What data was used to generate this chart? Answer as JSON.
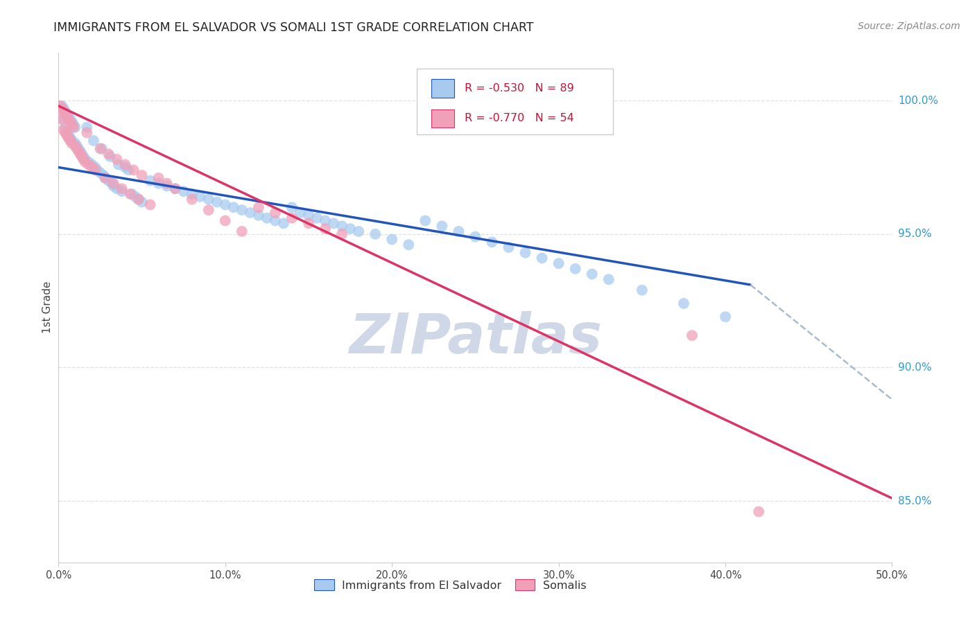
{
  "title": "IMMIGRANTS FROM EL SALVADOR VS SOMALI 1ST GRADE CORRELATION CHART",
  "source": "Source: ZipAtlas.com",
  "ylabel": "1st Grade",
  "ytick_labels": [
    "100.0%",
    "95.0%",
    "90.0%",
    "85.0%"
  ],
  "ytick_values": [
    1.0,
    0.95,
    0.9,
    0.85
  ],
  "xmin": 0.0,
  "xmax": 0.5,
  "ymin": 0.827,
  "ymax": 1.018,
  "legend_blue_r": "-0.530",
  "legend_blue_n": "89",
  "legend_pink_r": "-0.770",
  "legend_pink_n": "54",
  "blue_color": "#A8CAEE",
  "pink_color": "#F0A0B8",
  "blue_line_color": "#2255BB",
  "pink_line_color": "#DD3366",
  "dashed_line_color": "#AABBCC",
  "title_color": "#222222",
  "source_color": "#888888",
  "axis_label_color": "#444444",
  "tick_color": "#3399CC",
  "grid_color": "#DDDDDD",
  "watermark_text": "ZIPatlas",
  "watermark_color": "#D0D8E8",
  "blue_line_x": [
    0.0,
    0.415
  ],
  "blue_line_y": [
    0.975,
    0.931
  ],
  "pink_line_x": [
    0.0,
    0.5
  ],
  "pink_line_y": [
    0.998,
    0.851
  ],
  "dashed_line_x": [
    0.415,
    0.5
  ],
  "dashed_line_y": [
    0.931,
    0.888
  ],
  "blue_scatter_x": [
    0.002,
    0.003,
    0.003,
    0.004,
    0.004,
    0.005,
    0.005,
    0.006,
    0.006,
    0.007,
    0.007,
    0.008,
    0.008,
    0.009,
    0.01,
    0.01,
    0.011,
    0.012,
    0.013,
    0.014,
    0.015,
    0.016,
    0.017,
    0.018,
    0.02,
    0.021,
    0.022,
    0.023,
    0.025,
    0.026,
    0.027,
    0.028,
    0.03,
    0.031,
    0.032,
    0.033,
    0.035,
    0.036,
    0.038,
    0.04,
    0.042,
    0.044,
    0.046,
    0.048,
    0.05,
    0.055,
    0.06,
    0.065,
    0.07,
    0.075,
    0.08,
    0.085,
    0.09,
    0.095,
    0.1,
    0.105,
    0.11,
    0.115,
    0.12,
    0.125,
    0.13,
    0.135,
    0.14,
    0.145,
    0.15,
    0.155,
    0.16,
    0.165,
    0.17,
    0.175,
    0.18,
    0.19,
    0.2,
    0.21,
    0.22,
    0.23,
    0.24,
    0.25,
    0.26,
    0.27,
    0.28,
    0.29,
    0.3,
    0.31,
    0.32,
    0.33,
    0.35,
    0.375,
    0.4
  ],
  "blue_scatter_y": [
    0.998,
    0.997,
    0.993,
    0.996,
    0.99,
    0.995,
    0.988,
    0.994,
    0.987,
    0.993,
    0.986,
    0.992,
    0.985,
    0.991,
    0.984,
    0.99,
    0.983,
    0.982,
    0.981,
    0.98,
    0.979,
    0.978,
    0.99,
    0.977,
    0.976,
    0.985,
    0.975,
    0.974,
    0.973,
    0.982,
    0.972,
    0.971,
    0.97,
    0.979,
    0.969,
    0.968,
    0.967,
    0.976,
    0.966,
    0.975,
    0.974,
    0.965,
    0.964,
    0.963,
    0.962,
    0.97,
    0.969,
    0.968,
    0.967,
    0.966,
    0.965,
    0.964,
    0.963,
    0.962,
    0.961,
    0.96,
    0.959,
    0.958,
    0.957,
    0.956,
    0.955,
    0.954,
    0.96,
    0.958,
    0.957,
    0.956,
    0.955,
    0.954,
    0.953,
    0.952,
    0.951,
    0.95,
    0.948,
    0.946,
    0.955,
    0.953,
    0.951,
    0.949,
    0.947,
    0.945,
    0.943,
    0.941,
    0.939,
    0.937,
    0.935,
    0.933,
    0.929,
    0.924,
    0.919
  ],
  "pink_scatter_x": [
    0.001,
    0.002,
    0.002,
    0.003,
    0.003,
    0.004,
    0.004,
    0.005,
    0.005,
    0.006,
    0.006,
    0.007,
    0.007,
    0.008,
    0.008,
    0.009,
    0.01,
    0.011,
    0.012,
    0.013,
    0.014,
    0.015,
    0.016,
    0.017,
    0.018,
    0.02,
    0.022,
    0.025,
    0.028,
    0.03,
    0.033,
    0.035,
    0.038,
    0.04,
    0.043,
    0.045,
    0.048,
    0.05,
    0.055,
    0.06,
    0.065,
    0.07,
    0.08,
    0.09,
    0.1,
    0.11,
    0.12,
    0.13,
    0.14,
    0.15,
    0.16,
    0.17,
    0.38,
    0.42
  ],
  "pink_scatter_y": [
    0.998,
    0.997,
    0.993,
    0.996,
    0.989,
    0.995,
    0.988,
    0.994,
    0.987,
    0.993,
    0.986,
    0.992,
    0.985,
    0.991,
    0.984,
    0.99,
    0.983,
    0.982,
    0.981,
    0.98,
    0.979,
    0.978,
    0.977,
    0.988,
    0.976,
    0.975,
    0.974,
    0.982,
    0.971,
    0.98,
    0.969,
    0.978,
    0.967,
    0.976,
    0.965,
    0.974,
    0.963,
    0.972,
    0.961,
    0.971,
    0.969,
    0.967,
    0.963,
    0.959,
    0.955,
    0.951,
    0.96,
    0.958,
    0.956,
    0.954,
    0.952,
    0.95,
    0.912,
    0.846
  ]
}
